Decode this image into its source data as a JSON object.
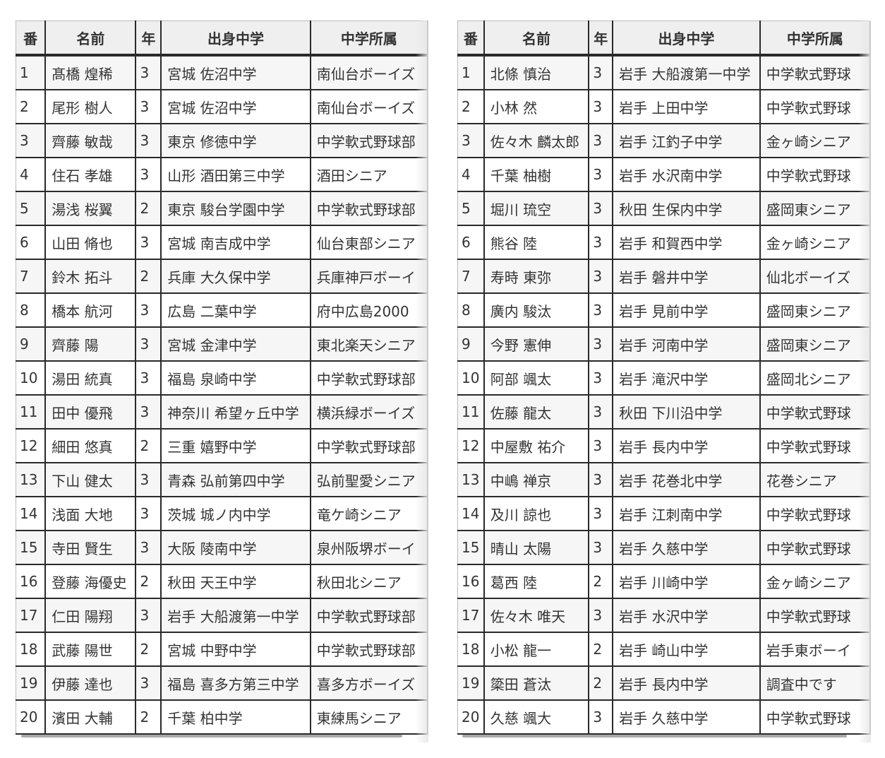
{
  "tables": [
    {
      "headers": [
        "番",
        "名前",
        "年",
        "出身中学",
        "中学所属"
      ],
      "rows": [
        [
          "1",
          "髙橋 煌稀",
          "3",
          "宮城 佐沼中学",
          "南仙台ボーイズ"
        ],
        [
          "2",
          "尾形 樹人",
          "3",
          "宮城 佐沼中学",
          "南仙台ボーイズ"
        ],
        [
          "3",
          "齊藤 敏哉",
          "3",
          "東京 修徳中学",
          "中学軟式野球部"
        ],
        [
          "4",
          "住石 孝雄",
          "3",
          "山形 酒田第三中学",
          "酒田シニア"
        ],
        [
          "5",
          "湯浅 桜翼",
          "2",
          "東京 駿台学園中学",
          "中学軟式野球部"
        ],
        [
          "6",
          "山田 脩也",
          "3",
          "宮城 南吉成中学",
          "仙台東部シニア"
        ],
        [
          "7",
          "鈴木 拓斗",
          "2",
          "兵庫 大久保中学",
          "兵庫神戸ボーイ"
        ],
        [
          "8",
          "橋本 航河",
          "3",
          "広島 二葉中学",
          "府中広島2000"
        ],
        [
          "9",
          "齊藤 陽",
          "3",
          "宮城 金津中学",
          "東北楽天シニア"
        ],
        [
          "10",
          "湯田 統真",
          "3",
          "福島 泉崎中学",
          "中学軟式野球部"
        ],
        [
          "11",
          "田中 優飛",
          "3",
          "神奈川 希望ヶ丘中学",
          "横浜緑ボーイズ"
        ],
        [
          "12",
          "細田 悠真",
          "2",
          "三重 嬉野中学",
          "中学軟式野球部"
        ],
        [
          "13",
          "下山 健太",
          "3",
          "青森 弘前第四中学",
          "弘前聖愛シニア"
        ],
        [
          "14",
          "浅面 大地",
          "3",
          "茨城 城ノ内中学",
          "竜ケ崎シニア"
        ],
        [
          "15",
          "寺田 賢生",
          "3",
          "大阪 陵南中学",
          "泉州阪堺ボーイ"
        ],
        [
          "16",
          "登藤 海優史",
          "2",
          "秋田 天王中学",
          "秋田北シニア"
        ],
        [
          "17",
          "仁田 陽翔",
          "3",
          "岩手 大船渡第一中学",
          "中学軟式野球部"
        ],
        [
          "18",
          "武藤 陽世",
          "2",
          "宮城 中野中学",
          "中学軟式野球部"
        ],
        [
          "19",
          "伊藤 達也",
          "3",
          "福島 喜多方第三中学",
          "喜多方ボーイズ"
        ],
        [
          "20",
          "濱田 大輔",
          "2",
          "千葉 柏中学",
          "東練馬シニア"
        ]
      ]
    },
    {
      "headers": [
        "番",
        "名前",
        "年",
        "出身中学",
        "中学所属"
      ],
      "rows": [
        [
          "1",
          "北條 慎治",
          "3",
          "岩手 大船渡第一中学",
          "中学軟式野球"
        ],
        [
          "2",
          "小林 然",
          "3",
          "岩手 上田中学",
          "中学軟式野球"
        ],
        [
          "3",
          "佐々木 麟太郎",
          "3",
          "岩手 江釣子中学",
          "金ヶ崎シニア"
        ],
        [
          "4",
          "千葉 柚樹",
          "3",
          "岩手 水沢南中学",
          "中学軟式野球"
        ],
        [
          "5",
          "堀川 琉空",
          "3",
          "秋田 生保内中学",
          "盛岡東シニア"
        ],
        [
          "6",
          "熊谷 陸",
          "3",
          "岩手 和賀西中学",
          "金ヶ崎シニア"
        ],
        [
          "7",
          "寿時 東弥",
          "3",
          "岩手 磐井中学",
          "仙北ボーイズ"
        ],
        [
          "8",
          "廣内 駿汰",
          "3",
          "岩手 見前中学",
          "盛岡東シニア"
        ],
        [
          "9",
          "今野 憲伸",
          "3",
          "岩手 河南中学",
          "盛岡東シニア"
        ],
        [
          "10",
          "阿部 颯太",
          "3",
          "岩手 滝沢中学",
          "盛岡北シニア"
        ],
        [
          "11",
          "佐藤 龍太",
          "3",
          "秋田 下川沿中学",
          "中学軟式野球"
        ],
        [
          "12",
          "中屋敷 祐介",
          "3",
          "岩手 長内中学",
          "中学軟式野球"
        ],
        [
          "13",
          "中嶋 禅京",
          "3",
          "岩手 花巻北中学",
          "花巻シニア"
        ],
        [
          "14",
          "及川 諒也",
          "3",
          "岩手 江刺南中学",
          "中学軟式野球"
        ],
        [
          "15",
          "晴山 太陽",
          "3",
          "岩手 久慈中学",
          "中学軟式野球"
        ],
        [
          "16",
          "葛西 陸",
          "2",
          "岩手 川崎中学",
          "金ヶ崎シニア"
        ],
        [
          "17",
          "佐々木 唯天",
          "3",
          "岩手 水沢中学",
          "中学軟式野球"
        ],
        [
          "18",
          "小松 龍一",
          "2",
          "岩手 崎山中学",
          "岩手東ボーイ"
        ],
        [
          "19",
          "簗田 蒼汰",
          "2",
          "岩手 長内中学",
          "調査中です"
        ],
        [
          "20",
          "久慈 颯大",
          "3",
          "岩手 久慈中学",
          "中学軟式野球"
        ]
      ]
    }
  ]
}
